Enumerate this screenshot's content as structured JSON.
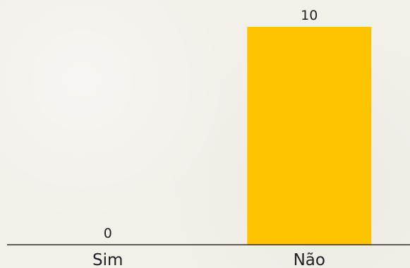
{
  "chart_data": {
    "type": "bar",
    "categories": [
      "Sim",
      "Não"
    ],
    "values": [
      0,
      10
    ],
    "ylim": [
      0,
      10
    ],
    "bar_color": "#ffc400",
    "axis_color": "#2b2b2b",
    "grid": false,
    "legend": "none",
    "title": "",
    "xlabel": "",
    "ylabel": ""
  }
}
